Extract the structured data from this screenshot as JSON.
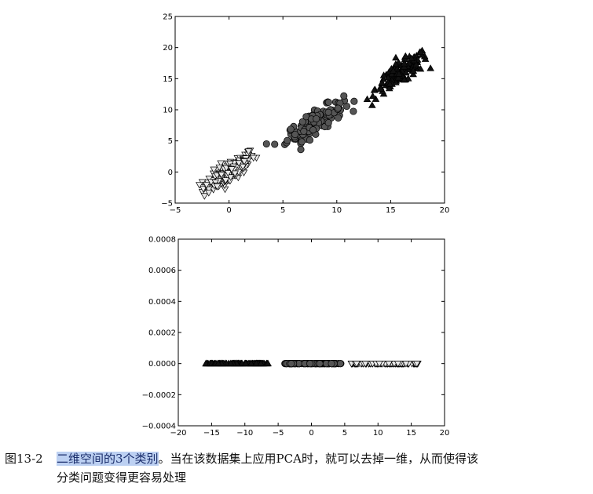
{
  "chart_data": [
    {
      "type": "scatter",
      "xlim": [
        -5,
        20
      ],
      "ylim": [
        -5,
        25
      ],
      "xticks": [
        "−5",
        "0",
        "5",
        "10",
        "15",
        "20"
      ],
      "yticks": [
        "−5",
        "0",
        "5",
        "10",
        "15",
        "20",
        "25"
      ],
      "grid": false,
      "series": [
        {
          "marker": "triangle-down",
          "color": "#e8e8e8",
          "center": [
            0,
            0
          ],
          "spread_x": 1.2,
          "slope": 1.1,
          "spread_perp": 0.9,
          "n": 150
        },
        {
          "marker": "circle",
          "color": "#555555",
          "center": [
            8,
            8
          ],
          "spread_x": 1.3,
          "slope": 1.0,
          "spread_perp": 0.9,
          "n": 150
        },
        {
          "marker": "triangle-up",
          "color": "#111111",
          "center": [
            16,
            16
          ],
          "spread_x": 1.2,
          "slope": 1.1,
          "spread_perp": 0.9,
          "n": 150
        }
      ]
    },
    {
      "type": "scatter",
      "xlim": [
        -20,
        20
      ],
      "ylim": [
        -0.0004,
        0.0008
      ],
      "xticks": [
        "−20",
        "−15",
        "−10",
        "−5",
        "0",
        "5",
        "10",
        "15",
        "20"
      ],
      "yticks": [
        "−0.0004",
        "−0.0002",
        "0.0000",
        "0.0002",
        "0.0004",
        "0.0006",
        "0.0008"
      ],
      "grid": false,
      "series": [
        {
          "marker": "triangle-up",
          "color": "#111111",
          "x_range": [
            -16,
            -6.5
          ],
          "y": 0,
          "n": 120
        },
        {
          "marker": "circle",
          "color": "#555555",
          "x_range": [
            -4,
            4.5
          ],
          "y": 0,
          "n": 120
        },
        {
          "marker": "triangle-down",
          "color": "#e8e8e8",
          "x_range": [
            6,
            16
          ],
          "y": 0,
          "n": 120
        }
      ]
    }
  ],
  "caption": {
    "label": "图13-2",
    "highlight": "二维空间的3个类别",
    "rest_line1": "。当在该数据集上应用PCA时，就可以去掉一维，从而使得该",
    "line2": "分类问题变得更容易处理"
  }
}
